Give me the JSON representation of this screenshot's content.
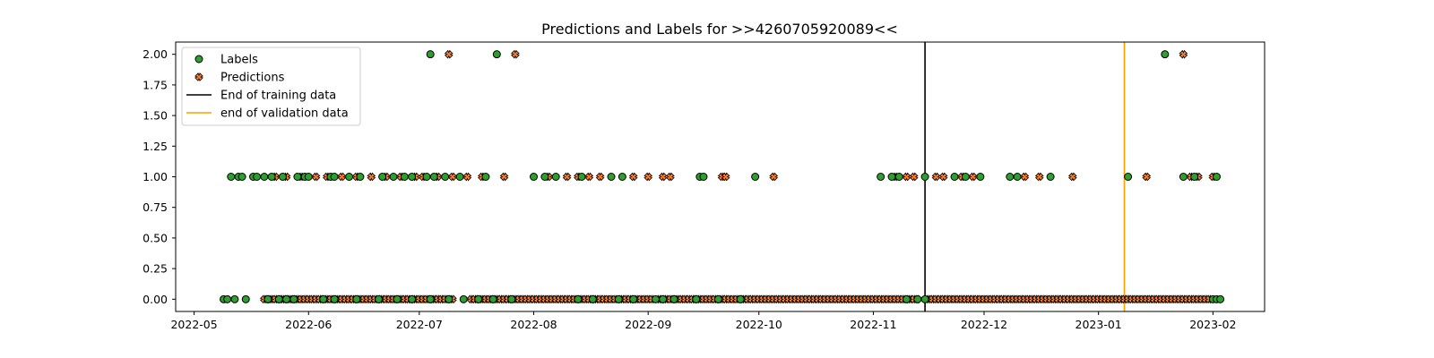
{
  "chart_data": {
    "type": "scatter",
    "title": "Predictions and Labels for >>4260705920089<<",
    "xlabel": "",
    "ylabel": "",
    "x_type": "date",
    "xlim": [
      "2022-04-26",
      "2023-02-15"
    ],
    "ylim": [
      -0.1,
      2.1
    ],
    "x_ticks": [
      "2022-05",
      "2022-06",
      "2022-07",
      "2022-08",
      "2022-09",
      "2022-10",
      "2022-11",
      "2022-12",
      "2023-01",
      "2023-02"
    ],
    "y_ticks": [
      "0.00",
      "0.25",
      "0.50",
      "0.75",
      "1.00",
      "1.25",
      "1.50",
      "1.75",
      "2.00"
    ],
    "grid": false,
    "legend_position": "top-left",
    "series": [
      {
        "name": "Labels",
        "marker": "circle",
        "color": "#2ca02c",
        "edge": "#000000",
        "points": [
          [
            "2022-05-09",
            0
          ],
          [
            "2022-05-10",
            0
          ],
          [
            "2022-05-12",
            0
          ],
          [
            "2022-05-15",
            0
          ],
          [
            "2022-05-11",
            1
          ],
          [
            "2022-05-13",
            1
          ],
          [
            "2022-05-14",
            1
          ],
          [
            "2022-05-17",
            1
          ],
          [
            "2022-05-18",
            1
          ],
          [
            "2022-05-20",
            1
          ],
          [
            "2022-05-22",
            1
          ],
          [
            "2022-05-25",
            1
          ],
          [
            "2022-05-29",
            1
          ],
          [
            "2022-05-31",
            1
          ],
          [
            "2022-06-01",
            1
          ],
          [
            "2022-06-07",
            1
          ],
          [
            "2022-06-08",
            1
          ],
          [
            "2022-06-12",
            1
          ],
          [
            "2022-06-15",
            1
          ],
          [
            "2022-06-21",
            1
          ],
          [
            "2022-06-24",
            1
          ],
          [
            "2022-06-27",
            1
          ],
          [
            "2022-06-29",
            1
          ],
          [
            "2022-07-03",
            1
          ],
          [
            "2022-07-05",
            1
          ],
          [
            "2022-07-08",
            1
          ],
          [
            "2022-07-12",
            1
          ],
          [
            "2022-07-19",
            1
          ],
          [
            "2022-08-01",
            1
          ],
          [
            "2022-08-04",
            1
          ],
          [
            "2022-08-07",
            1
          ],
          [
            "2022-08-14",
            1
          ],
          [
            "2022-08-22",
            1
          ],
          [
            "2022-08-25",
            1
          ],
          [
            "2022-09-15",
            1
          ],
          [
            "2022-09-16",
            1
          ],
          [
            "2022-09-30",
            1
          ],
          [
            "2022-11-03",
            1
          ],
          [
            "2022-11-06",
            1
          ],
          [
            "2022-11-08",
            1
          ],
          [
            "2022-11-15",
            1
          ],
          [
            "2022-11-23",
            1
          ],
          [
            "2022-11-26",
            1
          ],
          [
            "2022-11-30",
            1
          ],
          [
            "2022-12-08",
            1
          ],
          [
            "2022-12-10",
            1
          ],
          [
            "2022-12-19",
            1
          ],
          [
            "2023-01-09",
            1
          ],
          [
            "2023-01-24",
            1
          ],
          [
            "2023-01-27",
            1
          ],
          [
            "2023-02-02",
            1
          ],
          [
            "2022-05-21",
            0
          ],
          [
            "2022-05-24",
            0
          ],
          [
            "2022-05-26",
            0
          ],
          [
            "2022-05-28",
            0
          ],
          [
            "2022-06-05",
            0
          ],
          [
            "2022-06-08",
            0
          ],
          [
            "2022-06-14",
            0
          ],
          [
            "2022-06-20",
            0
          ],
          [
            "2022-06-25",
            0
          ],
          [
            "2022-06-29",
            0
          ],
          [
            "2022-07-04",
            0
          ],
          [
            "2022-07-09",
            0
          ],
          [
            "2022-07-13",
            0
          ],
          [
            "2022-07-17",
            0
          ],
          [
            "2022-07-21",
            0
          ],
          [
            "2022-07-26",
            0
          ],
          [
            "2022-08-13",
            0
          ],
          [
            "2022-08-17",
            0
          ],
          [
            "2022-08-24",
            0
          ],
          [
            "2022-08-28",
            0
          ],
          [
            "2022-09-03",
            0
          ],
          [
            "2022-09-05",
            0
          ],
          [
            "2022-09-08",
            0
          ],
          [
            "2022-09-14",
            0
          ],
          [
            "2022-09-20",
            0
          ],
          [
            "2022-09-26",
            0
          ],
          [
            "2022-11-10",
            0
          ],
          [
            "2022-11-13",
            0
          ],
          [
            "2022-11-15",
            0
          ],
          [
            "2023-02-01",
            0
          ],
          [
            "2023-02-02",
            0
          ],
          [
            "2023-02-03",
            0
          ],
          [
            "2022-07-04",
            2
          ],
          [
            "2022-07-22",
            2
          ],
          [
            "2023-01-19",
            2
          ]
        ]
      },
      {
        "name": "Predictions",
        "marker": "x",
        "color": "#ff7f2a",
        "edge": "#000000",
        "points": [
          [
            "2022-05-23",
            1
          ],
          [
            "2022-05-26",
            1
          ],
          [
            "2022-05-30",
            1
          ],
          [
            "2022-06-03",
            1
          ],
          [
            "2022-06-06",
            1
          ],
          [
            "2022-06-10",
            1
          ],
          [
            "2022-06-14",
            1
          ],
          [
            "2022-06-18",
            1
          ],
          [
            "2022-06-22",
            1
          ],
          [
            "2022-06-26",
            1
          ],
          [
            "2022-06-30",
            1
          ],
          [
            "2022-07-02",
            1
          ],
          [
            "2022-07-06",
            1
          ],
          [
            "2022-07-10",
            1
          ],
          [
            "2022-07-14",
            1
          ],
          [
            "2022-07-18",
            1
          ],
          [
            "2022-07-24",
            1
          ],
          [
            "2022-08-05",
            1
          ],
          [
            "2022-08-10",
            1
          ],
          [
            "2022-08-13",
            1
          ],
          [
            "2022-08-16",
            1
          ],
          [
            "2022-08-19",
            1
          ],
          [
            "2022-08-28",
            1
          ],
          [
            "2022-09-01",
            1
          ],
          [
            "2022-09-05",
            1
          ],
          [
            "2022-09-07",
            1
          ],
          [
            "2022-09-21",
            1
          ],
          [
            "2022-09-22",
            1
          ],
          [
            "2022-10-05",
            1
          ],
          [
            "2022-11-07",
            1
          ],
          [
            "2022-11-10",
            1
          ],
          [
            "2022-11-12",
            1
          ],
          [
            "2022-11-18",
            1
          ],
          [
            "2022-11-20",
            1
          ],
          [
            "2022-11-25",
            1
          ],
          [
            "2022-11-28",
            1
          ],
          [
            "2022-12-12",
            1
          ],
          [
            "2022-12-16",
            1
          ],
          [
            "2022-12-25",
            1
          ],
          [
            "2023-01-14",
            1
          ],
          [
            "2023-01-26",
            1
          ],
          [
            "2023-01-28",
            1
          ],
          [
            "2023-02-01",
            1
          ],
          [
            "2022-07-09",
            2
          ],
          [
            "2022-07-27",
            2
          ],
          [
            "2023-01-24",
            2
          ]
        ],
        "dense_zero_ranges": [
          [
            "2022-05-20",
            "2022-07-10"
          ],
          [
            "2022-07-15",
            "2022-09-02"
          ],
          [
            "2022-09-04",
            "2022-11-13"
          ],
          [
            "2022-11-16",
            "2023-01-31"
          ]
        ]
      }
    ],
    "vlines": [
      {
        "name": "End of training data",
        "x": "2022-11-15",
        "color": "#000000"
      },
      {
        "name": "end of validation data",
        "x": "2023-01-08",
        "color": "#ff9f00"
      }
    ]
  }
}
